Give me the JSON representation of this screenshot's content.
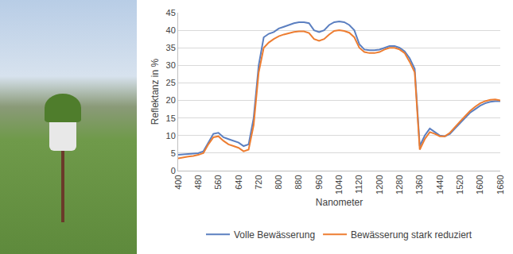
{
  "chart_data": {
    "type": "line",
    "x_label": "Nanometer",
    "y_label": "Reflektanz in %",
    "x": [
      400,
      420,
      440,
      460,
      480,
      500,
      520,
      540,
      560,
      580,
      600,
      620,
      640,
      660,
      680,
      700,
      720,
      740,
      760,
      780,
      800,
      820,
      840,
      860,
      880,
      900,
      920,
      940,
      960,
      980,
      1000,
      1020,
      1040,
      1060,
      1080,
      1100,
      1120,
      1140,
      1160,
      1180,
      1200,
      1220,
      1240,
      1260,
      1280,
      1300,
      1320,
      1340,
      1360,
      1380,
      1400,
      1420,
      1440,
      1460,
      1480,
      1500,
      1520,
      1540,
      1560,
      1580,
      1600,
      1620,
      1640,
      1660,
      1680
    ],
    "series": [
      {
        "name": "Volle Bewässerung",
        "color": "#5b7fc0",
        "values": [
          4.5,
          4.6,
          4.7,
          4.8,
          5,
          5.5,
          8,
          10.5,
          10.8,
          9.5,
          9,
          8.5,
          8,
          7,
          7.5,
          15,
          30,
          38,
          39,
          39.5,
          40.5,
          41,
          41.5,
          42,
          42.3,
          42.3,
          42,
          40,
          39.5,
          40,
          41.5,
          42.3,
          42.5,
          42.3,
          41.5,
          40,
          36,
          34.5,
          34.3,
          34.3,
          34.5,
          35,
          35.5,
          35.5,
          35,
          34,
          32,
          29,
          7,
          10,
          12,
          11,
          10,
          9.8,
          10.5,
          12,
          13.5,
          15,
          16.5,
          17.5,
          18.5,
          19.2,
          19.6,
          19.8,
          19.8
        ]
      },
      {
        "name": "Bewässerung stark reduziert",
        "color": "#ed7d31",
        "values": [
          3.5,
          3.8,
          4,
          4.2,
          4.5,
          5,
          7.5,
          9.5,
          9.8,
          8.5,
          7.5,
          7,
          6.5,
          5.5,
          6,
          13,
          28,
          35,
          36.5,
          37.5,
          38.3,
          38.8,
          39.2,
          39.5,
          39.7,
          39.7,
          39.2,
          37.5,
          37,
          37.5,
          38.8,
          39.8,
          40,
          39.8,
          39.3,
          38,
          35,
          33.8,
          33.5,
          33.5,
          33.8,
          34.5,
          35,
          35,
          34.5,
          33.5,
          31,
          28,
          6,
          9,
          11,
          10.5,
          9.8,
          9.8,
          10.8,
          12.5,
          14,
          15.5,
          17,
          18.2,
          19.2,
          19.8,
          20.2,
          20.3,
          20
        ]
      }
    ],
    "xlim": [
      400,
      1680
    ],
    "xticks": [
      400,
      480,
      560,
      640,
      720,
      800,
      880,
      960,
      1040,
      1120,
      1200,
      1280,
      1360,
      1440,
      1520,
      1600,
      1680
    ],
    "ylim": [
      0,
      45
    ],
    "yticks": [
      0,
      5,
      10,
      15,
      20,
      25,
      30,
      35,
      40,
      45
    ],
    "grid": true,
    "legend": "bottom"
  }
}
